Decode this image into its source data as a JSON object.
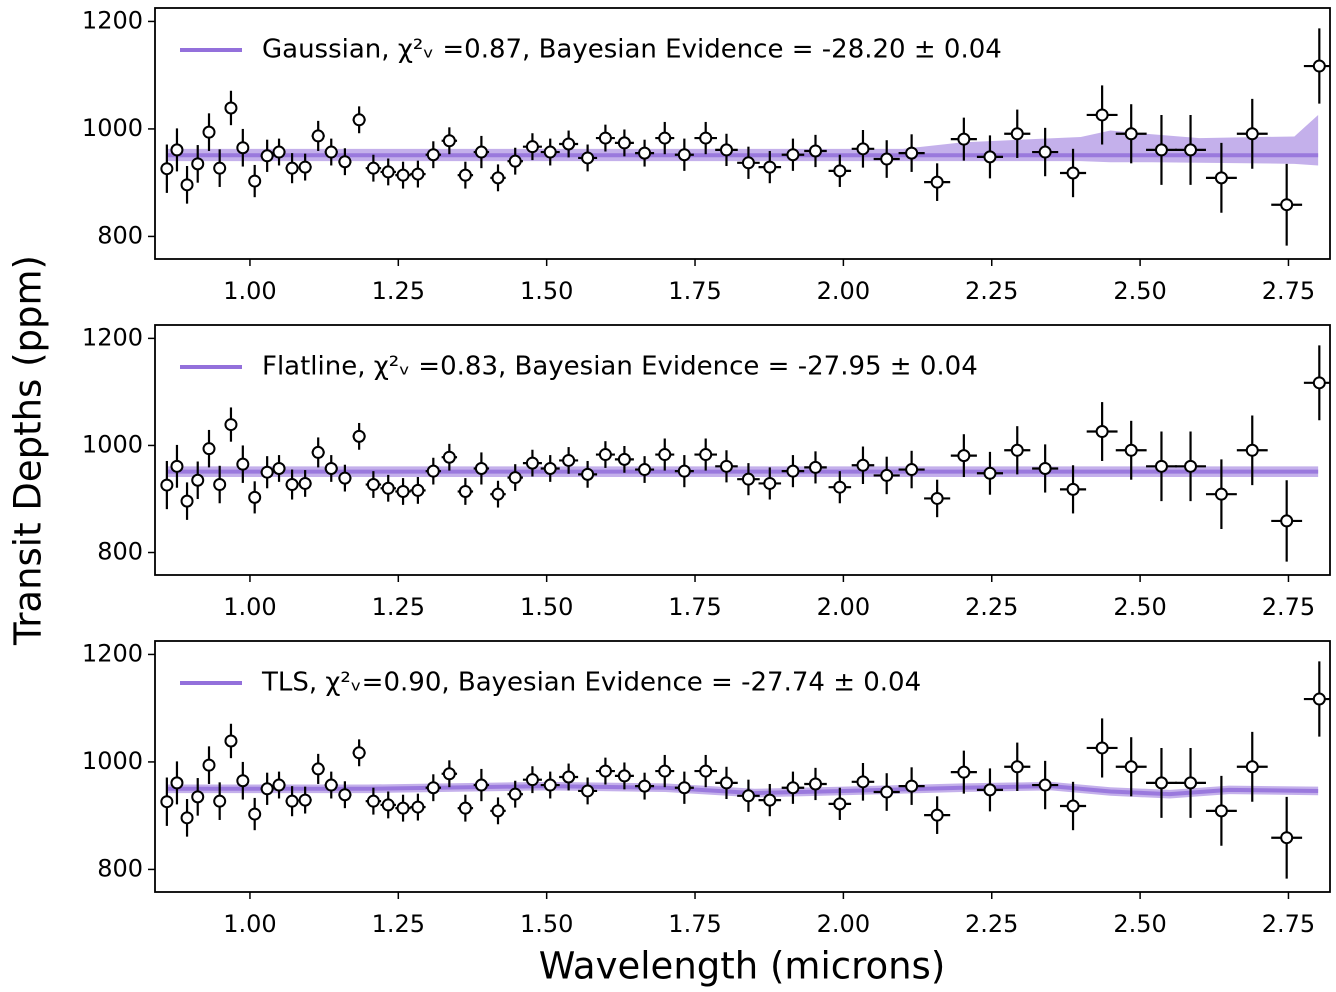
{
  "ylabel": "Transit Depths (ppm)",
  "xlabel": "Wavelength (microns)",
  "chart_data": [
    {
      "type": "scatter",
      "legend": "upper left",
      "xlim": [
        0.84,
        2.82
      ],
      "ylim": [
        758,
        1225
      ],
      "xticks": [
        {
          "value": 1,
          "label": "1.00"
        },
        1.25,
        {
          "value": 1.5,
          "label": "1.50"
        },
        1.75,
        {
          "value": 2,
          "label": "2.00"
        },
        2.25,
        {
          "value": 2.5,
          "label": "2.50"
        },
        2.75
      ],
      "yticks": [
        800,
        1000,
        1200
      ],
      "points": {
        "color": "#000000",
        "x": [
          0.86,
          0.877,
          0.894,
          0.912,
          0.931,
          0.949,
          0.968,
          0.988,
          1.008,
          1.029,
          1.049,
          1.071,
          1.093,
          1.115,
          1.137,
          1.16,
          1.184,
          1.208,
          1.233,
          1.258,
          1.283,
          1.309,
          1.336,
          1.363,
          1.39,
          1.418,
          1.447,
          1.476,
          1.506,
          1.537,
          1.569,
          1.599,
          1.631,
          1.665,
          1.699,
          1.732,
          1.768,
          1.803,
          1.84,
          1.876,
          1.915,
          1.953,
          1.994,
          2.033,
          2.073,
          2.115,
          2.158,
          2.203,
          2.247,
          2.293,
          2.34,
          2.387,
          2.436,
          2.485,
          2.536,
          2.585,
          2.637,
          2.689,
          2.747,
          2.802
        ],
        "values": [
          926,
          961,
          896,
          935,
          994,
          927,
          1039,
          965,
          903,
          950,
          957,
          927,
          929,
          987,
          957,
          939,
          1017,
          927,
          920,
          914,
          916,
          952,
          978,
          914,
          957,
          909,
          940,
          967,
          957,
          972,
          946,
          983,
          974,
          955,
          983,
          952,
          983,
          961,
          937,
          929,
          952,
          959,
          922,
          963,
          944,
          955,
          901,
          981,
          948,
          991,
          957,
          918,
          1026,
          991,
          961,
          961,
          909,
          991,
          859,
          1117
        ],
        "xerr": [
          0.009,
          0.009,
          0.009,
          0.009,
          0.009,
          0.009,
          0.009,
          0.009,
          0.009,
          0.011,
          0.011,
          0.011,
          0.011,
          0.011,
          0.011,
          0.011,
          0.011,
          0.013,
          0.013,
          0.013,
          0.013,
          0.013,
          0.013,
          0.013,
          0.013,
          0.013,
          0.013,
          0.016,
          0.016,
          0.016,
          0.016,
          0.016,
          0.016,
          0.016,
          0.016,
          0.016,
          0.019,
          0.019,
          0.019,
          0.019,
          0.019,
          0.019,
          0.019,
          0.019,
          0.022,
          0.022,
          0.022,
          0.022,
          0.022,
          0.022,
          0.022,
          0.022,
          0.026,
          0.026,
          0.026,
          0.026,
          0.026,
          0.026,
          0.026,
          0.026
        ],
        "yerr": [
          45,
          40,
          35,
          35,
          35,
          35,
          32,
          35,
          30,
          30,
          25,
          28,
          25,
          28,
          25,
          25,
          25,
          25,
          25,
          25,
          25,
          25,
          25,
          25,
          30,
          25,
          25,
          25,
          25,
          25,
          25,
          25,
          25,
          25,
          30,
          30,
          30,
          30,
          30,
          30,
          30,
          30,
          30,
          35,
          35,
          35,
          35,
          40,
          40,
          45,
          45,
          45,
          55,
          55,
          65,
          65,
          65,
          65,
          76,
          70
        ]
      },
      "model": {
        "name": "Gaussian, χ²ᵥ =0.87, Bayesian Evidence = -28.20 ± 0.04",
        "color": "#9370db",
        "x": [
          0.86,
          2.1,
          2.2,
          2.3,
          2.4,
          2.45,
          2.52,
          2.6,
          2.7,
          2.76,
          2.8
        ],
        "values": [
          951,
          951,
          951,
          951,
          951,
          951,
          951,
          951,
          951,
          951,
          951
        ],
        "lower": [
          940,
          940,
          940,
          940,
          940,
          938,
          938,
          937,
          936,
          935,
          932
        ],
        "upper": [
          963,
          963,
          975,
          980,
          985,
          997,
          990,
          983,
          985,
          986,
          1026
        ]
      }
    },
    {
      "type": "scatter",
      "legend": "upper left",
      "xlim": [
        0.84,
        2.82
      ],
      "ylim": [
        758,
        1225
      ],
      "xticks": [
        {
          "value": 1,
          "label": "1.00"
        },
        1.25,
        {
          "value": 1.5,
          "label": "1.50"
        },
        1.75,
        {
          "value": 2,
          "label": "2.00"
        },
        2.25,
        {
          "value": 2.5,
          "label": "2.50"
        },
        2.75
      ],
      "yticks": [
        800,
        1000,
        1200
      ],
      "points": {
        "color": "#000000",
        "x": [
          0.86,
          0.877,
          0.894,
          0.912,
          0.931,
          0.949,
          0.968,
          0.988,
          1.008,
          1.029,
          1.049,
          1.071,
          1.093,
          1.115,
          1.137,
          1.16,
          1.184,
          1.208,
          1.233,
          1.258,
          1.283,
          1.309,
          1.336,
          1.363,
          1.39,
          1.418,
          1.447,
          1.476,
          1.506,
          1.537,
          1.569,
          1.599,
          1.631,
          1.665,
          1.699,
          1.732,
          1.768,
          1.803,
          1.84,
          1.876,
          1.915,
          1.953,
          1.994,
          2.033,
          2.073,
          2.115,
          2.158,
          2.203,
          2.247,
          2.293,
          2.34,
          2.387,
          2.436,
          2.485,
          2.536,
          2.585,
          2.637,
          2.689,
          2.747,
          2.802
        ],
        "values": [
          926,
          961,
          896,
          935,
          994,
          927,
          1039,
          965,
          903,
          950,
          957,
          927,
          929,
          987,
          957,
          939,
          1017,
          927,
          920,
          914,
          916,
          952,
          978,
          914,
          957,
          909,
          940,
          967,
          957,
          972,
          946,
          983,
          974,
          955,
          983,
          952,
          983,
          961,
          937,
          929,
          952,
          959,
          922,
          963,
          944,
          955,
          901,
          981,
          948,
          991,
          957,
          918,
          1026,
          991,
          961,
          961,
          909,
          991,
          859,
          1117
        ],
        "xerr": [
          0.009,
          0.009,
          0.009,
          0.009,
          0.009,
          0.009,
          0.009,
          0.009,
          0.009,
          0.011,
          0.011,
          0.011,
          0.011,
          0.011,
          0.011,
          0.011,
          0.011,
          0.013,
          0.013,
          0.013,
          0.013,
          0.013,
          0.013,
          0.013,
          0.013,
          0.013,
          0.013,
          0.016,
          0.016,
          0.016,
          0.016,
          0.016,
          0.016,
          0.016,
          0.016,
          0.016,
          0.019,
          0.019,
          0.019,
          0.019,
          0.019,
          0.019,
          0.019,
          0.019,
          0.022,
          0.022,
          0.022,
          0.022,
          0.022,
          0.022,
          0.022,
          0.022,
          0.026,
          0.026,
          0.026,
          0.026,
          0.026,
          0.026,
          0.026,
          0.026
        ],
        "yerr": [
          45,
          40,
          35,
          35,
          35,
          35,
          32,
          35,
          30,
          30,
          25,
          28,
          25,
          28,
          25,
          25,
          25,
          25,
          25,
          25,
          25,
          25,
          25,
          25,
          30,
          25,
          25,
          25,
          25,
          25,
          25,
          25,
          25,
          25,
          30,
          30,
          30,
          30,
          30,
          30,
          30,
          30,
          30,
          35,
          35,
          35,
          35,
          40,
          40,
          45,
          45,
          45,
          55,
          55,
          65,
          65,
          65,
          65,
          76,
          70
        ]
      },
      "model": {
        "name": "Flatline, χ²ᵥ =0.83, Bayesian Evidence = -27.95 ± 0.04",
        "color": "#9370db",
        "x": [
          0.86,
          2.8
        ],
        "values": [
          951,
          951
        ],
        "lower": [
          941,
          941
        ],
        "upper": [
          961,
          961
        ]
      }
    },
    {
      "type": "scatter",
      "legend": "upper left",
      "xlim": [
        0.84,
        2.82
      ],
      "ylim": [
        758,
        1225
      ],
      "xticks": [
        {
          "value": 1,
          "label": "1.00"
        },
        1.25,
        {
          "value": 1.5,
          "label": "1.50"
        },
        1.75,
        {
          "value": 2,
          "label": "2.00"
        },
        2.25,
        {
          "value": 2.5,
          "label": "2.50"
        },
        2.75
      ],
      "yticks": [
        800,
        1000,
        1200
      ],
      "points": {
        "color": "#000000",
        "x": [
          0.86,
          0.877,
          0.894,
          0.912,
          0.931,
          0.949,
          0.968,
          0.988,
          1.008,
          1.029,
          1.049,
          1.071,
          1.093,
          1.115,
          1.137,
          1.16,
          1.184,
          1.208,
          1.233,
          1.258,
          1.283,
          1.309,
          1.336,
          1.363,
          1.39,
          1.418,
          1.447,
          1.476,
          1.506,
          1.537,
          1.569,
          1.599,
          1.631,
          1.665,
          1.699,
          1.732,
          1.768,
          1.803,
          1.84,
          1.876,
          1.915,
          1.953,
          1.994,
          2.033,
          2.073,
          2.115,
          2.158,
          2.203,
          2.247,
          2.293,
          2.34,
          2.387,
          2.436,
          2.485,
          2.536,
          2.585,
          2.637,
          2.689,
          2.747,
          2.802
        ],
        "values": [
          926,
          961,
          896,
          935,
          994,
          927,
          1039,
          965,
          903,
          950,
          957,
          927,
          929,
          987,
          957,
          939,
          1017,
          927,
          920,
          914,
          916,
          952,
          978,
          914,
          957,
          909,
          940,
          967,
          957,
          972,
          946,
          983,
          974,
          955,
          983,
          952,
          983,
          961,
          937,
          929,
          952,
          959,
          922,
          963,
          944,
          955,
          901,
          981,
          948,
          991,
          957,
          918,
          1026,
          991,
          961,
          961,
          909,
          991,
          859,
          1117
        ],
        "xerr": [
          0.009,
          0.009,
          0.009,
          0.009,
          0.009,
          0.009,
          0.009,
          0.009,
          0.009,
          0.011,
          0.011,
          0.011,
          0.011,
          0.011,
          0.011,
          0.011,
          0.011,
          0.013,
          0.013,
          0.013,
          0.013,
          0.013,
          0.013,
          0.013,
          0.013,
          0.013,
          0.013,
          0.016,
          0.016,
          0.016,
          0.016,
          0.016,
          0.016,
          0.016,
          0.016,
          0.016,
          0.019,
          0.019,
          0.019,
          0.019,
          0.019,
          0.019,
          0.019,
          0.019,
          0.022,
          0.022,
          0.022,
          0.022,
          0.022,
          0.022,
          0.022,
          0.022,
          0.026,
          0.026,
          0.026,
          0.026,
          0.026,
          0.026,
          0.026,
          0.026
        ],
        "yerr": [
          45,
          40,
          35,
          35,
          35,
          35,
          32,
          35,
          30,
          30,
          25,
          28,
          25,
          28,
          25,
          25,
          25,
          25,
          25,
          25,
          25,
          25,
          25,
          25,
          30,
          25,
          25,
          25,
          25,
          25,
          25,
          25,
          25,
          25,
          30,
          30,
          30,
          30,
          30,
          30,
          30,
          30,
          30,
          35,
          35,
          35,
          35,
          40,
          40,
          45,
          45,
          45,
          55,
          55,
          65,
          65,
          65,
          65,
          76,
          70
        ]
      },
      "model": {
        "name": "TLS, χ²ᵥ=0.90, Bayesian Evidence = -27.74 ± 0.04",
        "color": "#9370db",
        "x": [
          0.86,
          1.2,
          1.5,
          1.7,
          1.85,
          2.0,
          2.2,
          2.35,
          2.45,
          2.55,
          2.65,
          2.8
        ],
        "values": [
          950,
          950,
          955,
          952,
          942,
          946,
          952,
          955,
          945,
          940,
          948,
          946
        ],
        "lower": [
          942,
          942,
          947,
          944,
          934,
          938,
          944,
          947,
          937,
          932,
          940,
          938
        ],
        "upper": [
          958,
          958,
          963,
          960,
          950,
          954,
          960,
          963,
          953,
          948,
          956,
          954
        ]
      }
    }
  ]
}
